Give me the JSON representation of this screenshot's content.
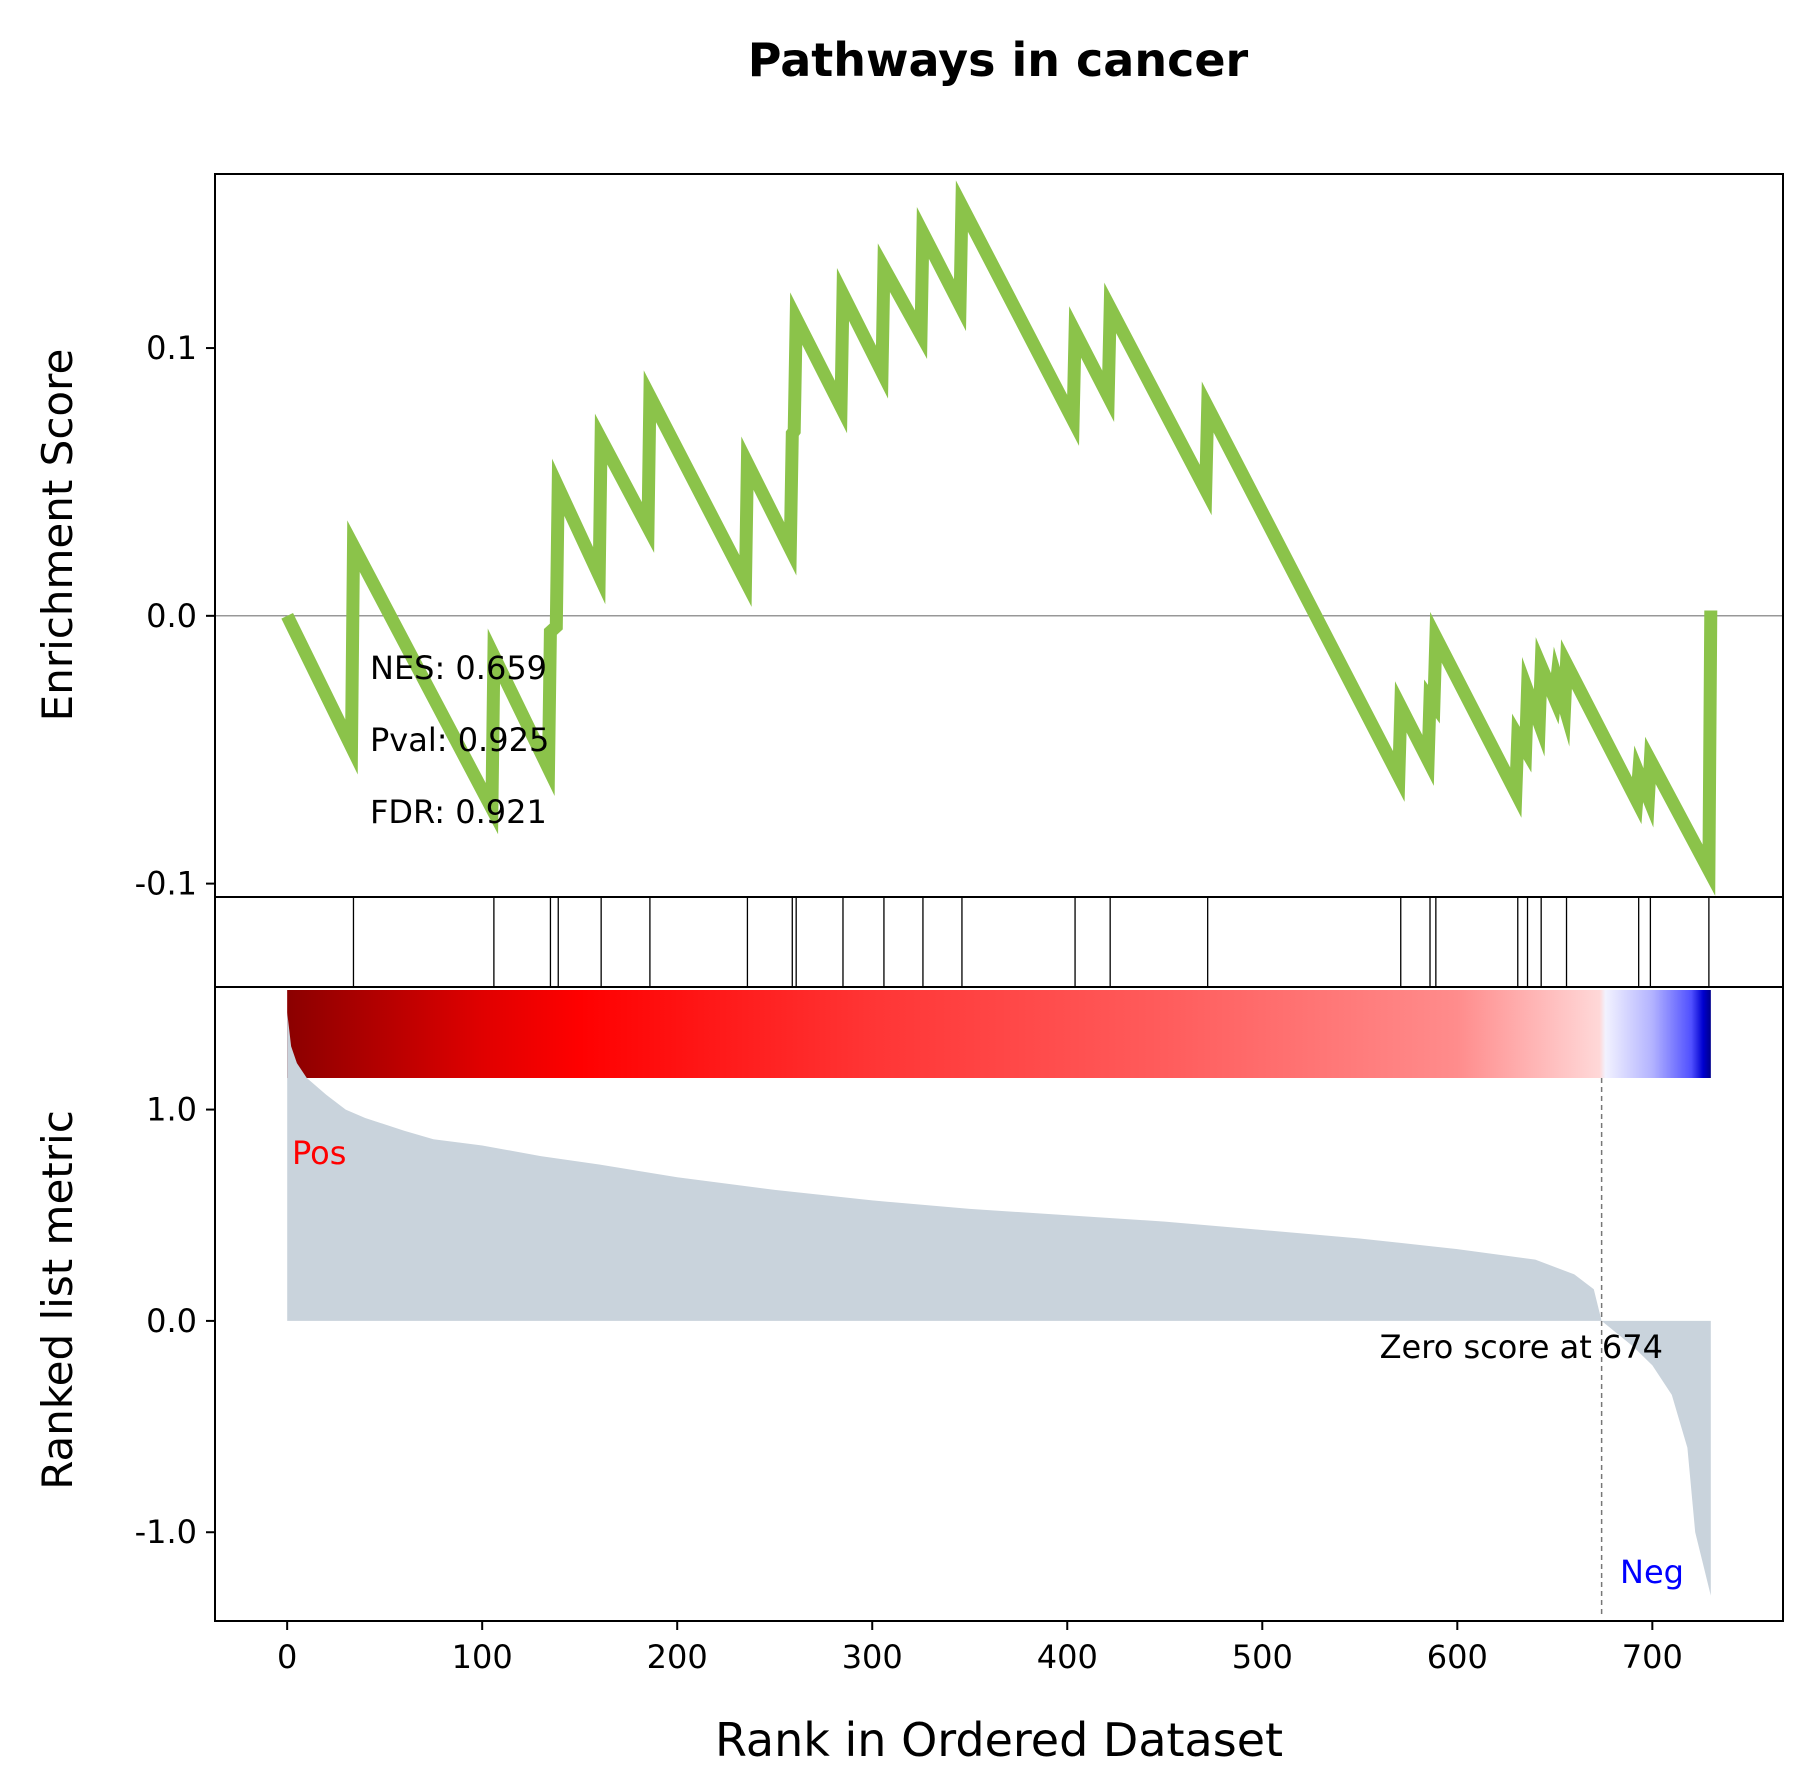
{
  "chart_data": {
    "type": "line",
    "title": "Pathways in cancer",
    "xlabel": "Rank in Ordered Dataset",
    "x_ticks": [
      0,
      100,
      200,
      300,
      400,
      500,
      600,
      700
    ],
    "xlim": [
      -37,
      767
    ],
    "panels": {
      "enrichment": {
        "ylabel": "Enrichment Score",
        "ylim": [
          -0.105,
          0.165
        ],
        "y_ticks": [
          {
            "value": 0.1,
            "label": "0.1"
          },
          {
            "value": 0.0,
            "label": "0.0"
          },
          {
            "value": -0.1,
            "label": "-0.1"
          }
        ],
        "line_color": "#8bc34a",
        "points": [
          [
            0,
            0.0
          ],
          [
            33,
            -0.049
          ],
          [
            34,
            0.026
          ],
          [
            105,
            -0.072
          ],
          [
            106,
            -0.015
          ],
          [
            134,
            -0.057
          ],
          [
            135,
            -0.006
          ],
          [
            138,
            -0.004
          ],
          [
            139,
            0.048
          ],
          [
            160,
            0.015
          ],
          [
            161,
            0.066
          ],
          [
            185,
            0.033
          ],
          [
            186,
            0.082
          ],
          [
            235,
            0.013
          ],
          [
            236,
            0.057
          ],
          [
            258,
            0.025
          ],
          [
            259,
            0.068
          ],
          [
            260,
            0.069
          ],
          [
            261,
            0.111
          ],
          [
            284,
            0.078
          ],
          [
            285,
            0.12
          ],
          [
            305,
            0.091
          ],
          [
            306,
            0.13
          ],
          [
            325,
            0.105
          ],
          [
            326,
            0.143
          ],
          [
            345,
            0.116
          ],
          [
            346,
            0.153
          ],
          [
            403,
            0.073
          ],
          [
            404,
            0.106
          ],
          [
            421,
            0.082
          ],
          [
            422,
            0.115
          ],
          [
            471,
            0.047
          ],
          [
            472,
            0.078
          ],
          [
            570,
            -0.06
          ],
          [
            571,
            -0.034
          ],
          [
            585,
            -0.054
          ],
          [
            586,
            -0.031
          ],
          [
            588,
            -0.033
          ],
          [
            589,
            -0.008
          ],
          [
            630,
            -0.066
          ],
          [
            631,
            -0.045
          ],
          [
            635,
            -0.05
          ],
          [
            636,
            -0.028
          ],
          [
            642,
            -0.04
          ],
          [
            643,
            -0.019
          ],
          [
            650,
            -0.031
          ],
          [
            651,
            -0.024
          ],
          [
            655,
            -0.034
          ],
          [
            656,
            -0.018
          ],
          [
            692,
            -0.069
          ],
          [
            693,
            -0.059
          ],
          [
            698,
            -0.068
          ],
          [
            699,
            -0.054
          ],
          [
            729,
            -0.095
          ],
          [
            730,
            0.002
          ]
        ],
        "annotations": [
          "NES: 0.659",
          "Pval: 0.925",
          "FDR: 0.921"
        ]
      },
      "hits": {
        "positions": [
          34,
          106,
          135,
          139,
          161,
          186,
          236,
          259,
          261,
          285,
          306,
          326,
          346,
          404,
          422,
          472,
          571,
          586,
          589,
          631,
          636,
          643,
          656,
          693,
          699,
          729
        ]
      },
      "ranked_metric": {
        "ylabel": "Ranked list metric",
        "ylim": [
          -1.42,
          1.58
        ],
        "y_ticks": [
          {
            "value": 1.0,
            "label": "1.0"
          },
          {
            "value": 0.0,
            "label": "0.0"
          },
          {
            "value": -1.0,
            "label": "-1.0"
          }
        ],
        "fill_color": "#c9d3dc",
        "curve": [
          [
            0,
            1.46
          ],
          [
            2,
            1.3
          ],
          [
            5,
            1.22
          ],
          [
            10,
            1.15
          ],
          [
            20,
            1.07
          ],
          [
            30,
            1.0
          ],
          [
            40,
            0.96
          ],
          [
            60,
            0.9
          ],
          [
            75,
            0.86
          ],
          [
            100,
            0.83
          ],
          [
            130,
            0.78
          ],
          [
            160,
            0.74
          ],
          [
            200,
            0.68
          ],
          [
            250,
            0.62
          ],
          [
            300,
            0.57
          ],
          [
            350,
            0.53
          ],
          [
            400,
            0.5
          ],
          [
            450,
            0.47
          ],
          [
            500,
            0.43
          ],
          [
            550,
            0.39
          ],
          [
            600,
            0.34
          ],
          [
            640,
            0.29
          ],
          [
            660,
            0.22
          ],
          [
            670,
            0.15
          ],
          [
            674,
            0.0
          ],
          [
            690,
            -0.12
          ],
          [
            700,
            -0.21
          ],
          [
            710,
            -0.35
          ],
          [
            718,
            -0.6
          ],
          [
            722,
            -1.0
          ],
          [
            726,
            -1.15
          ],
          [
            730,
            -1.3
          ]
        ],
        "zero_cross_rank": 674,
        "zero_cross_label": "Zero score at 674",
        "pos_label": "Pos",
        "pos_color": "#ff0000",
        "neg_label": "Neg",
        "neg_color": "#0000ff"
      },
      "heatmap": {
        "stops": [
          {
            "rank": 0,
            "color": "#8b0000"
          },
          {
            "rank": 100,
            "color": "#e00000"
          },
          {
            "rank": 150,
            "color": "#ff0000"
          },
          {
            "rank": 300,
            "color": "#ff3535"
          },
          {
            "rank": 450,
            "color": "#ff5c5c"
          },
          {
            "rank": 600,
            "color": "#ff8c8c"
          },
          {
            "rank": 673,
            "color": "#ffd8d8"
          },
          {
            "rank": 676,
            "color": "#f2f2ff"
          },
          {
            "rank": 700,
            "color": "#b3b3ff"
          },
          {
            "rank": 720,
            "color": "#5050ff"
          },
          {
            "rank": 726,
            "color": "#0000d0"
          },
          {
            "rank": 730,
            "color": "#00008b"
          }
        ]
      }
    }
  }
}
